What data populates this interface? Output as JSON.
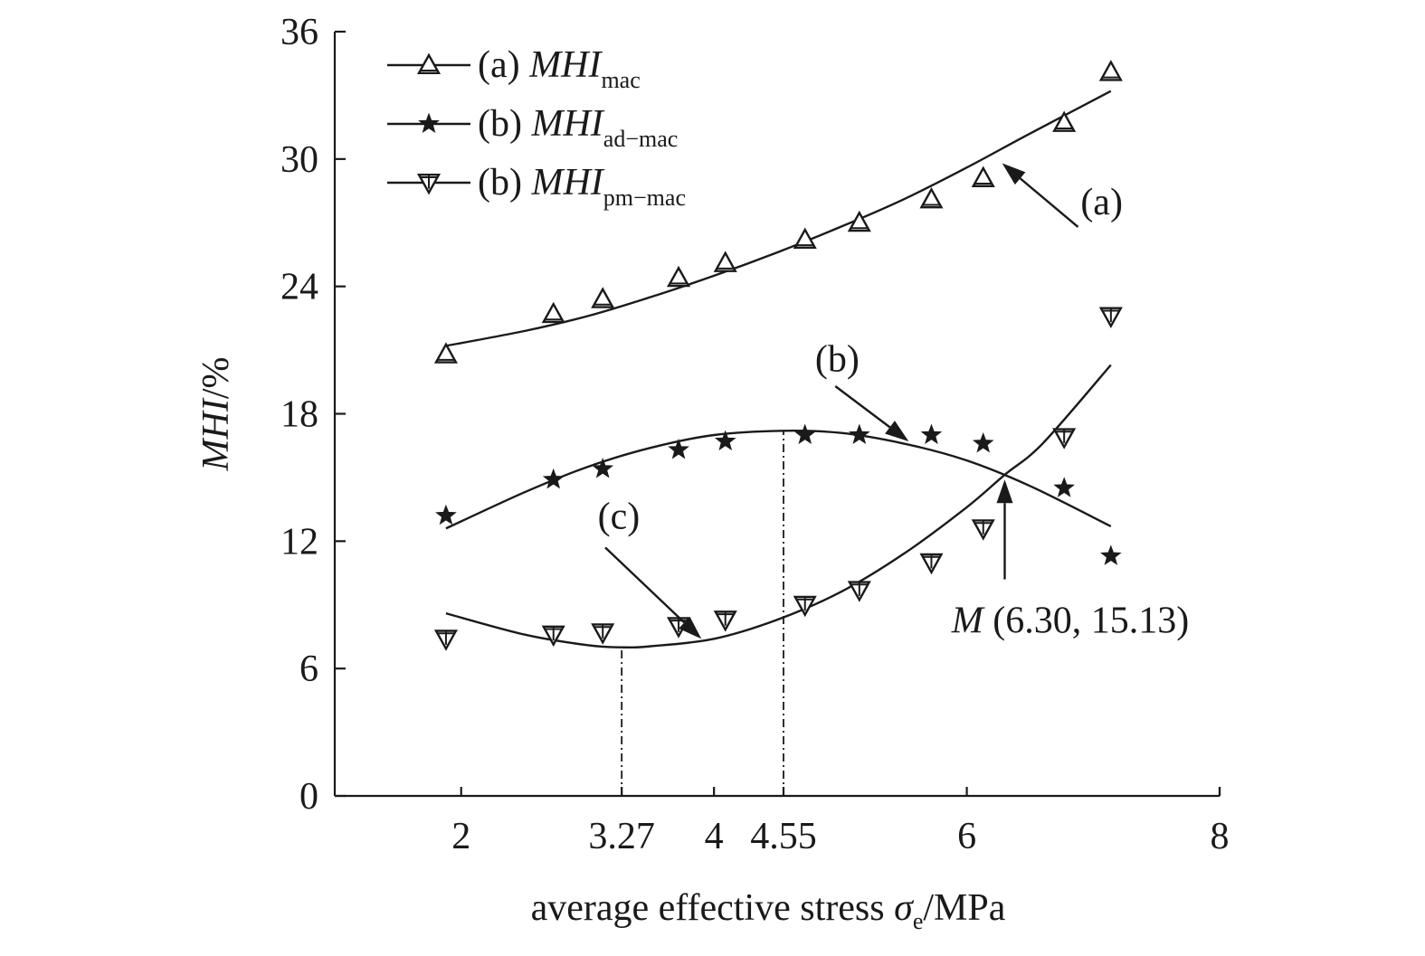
{
  "chart_data": {
    "type": "scatter",
    "xlabel": "average effective stress σe/MPa",
    "xlabel_main": "average effective stress ",
    "xlabel_symbol": "σ",
    "xlabel_sub": "e",
    "xlabel_unit": "/MPa",
    "ylabel": "MHI/%",
    "ylabel_var": "MHI",
    "ylabel_unit": "/%",
    "xlim": [
      1,
      8
    ],
    "ylim": [
      0,
      36
    ],
    "x_ticks": [
      2,
      3.27,
      4,
      4.55,
      6,
      8
    ],
    "x_tick_labels": [
      "2",
      "3.27",
      "4",
      "4.55",
      "6",
      "8"
    ],
    "y_ticks": [
      0,
      6,
      12,
      18,
      24,
      30,
      36
    ],
    "y_tick_labels": [
      "0",
      "6",
      "12",
      "18",
      "24",
      "30",
      "36"
    ],
    "legend_position": "top-left",
    "grid": false,
    "series": [
      {
        "name": "(a) MHImac",
        "legend_prefix": "(a) ",
        "legend_var": "MHI",
        "legend_sub": "mac",
        "marker": "triangle-up-open",
        "points": [
          {
            "x": 1.88,
            "y": 20.8
          },
          {
            "x": 2.73,
            "y": 22.7
          },
          {
            "x": 3.12,
            "y": 23.4
          },
          {
            "x": 3.72,
            "y": 24.4
          },
          {
            "x": 4.09,
            "y": 25.1
          },
          {
            "x": 4.72,
            "y": 26.2
          },
          {
            "x": 5.15,
            "y": 27.0
          },
          {
            "x": 5.72,
            "y": 28.1
          },
          {
            "x": 6.13,
            "y": 29.1
          },
          {
            "x": 6.77,
            "y": 31.7
          },
          {
            "x": 7.14,
            "y": 34.1
          }
        ],
        "fit": {
          "x": [
            1.88,
            2.5,
            3.0,
            3.5,
            4.0,
            4.5,
            5.0,
            5.5,
            6.0,
            6.5,
            7.14
          ],
          "y": [
            21.2,
            21.9,
            22.6,
            23.5,
            24.5,
            25.6,
            26.8,
            28.1,
            29.6,
            31.2,
            33.2
          ]
        }
      },
      {
        "name": "(b) MHIad−mac",
        "legend_prefix": "(b) ",
        "legend_var": "MHI",
        "legend_sub": "ad−mac",
        "marker": "star-filled",
        "points": [
          {
            "x": 1.88,
            "y": 13.2
          },
          {
            "x": 2.73,
            "y": 14.9
          },
          {
            "x": 3.12,
            "y": 15.4
          },
          {
            "x": 3.72,
            "y": 16.3
          },
          {
            "x": 4.09,
            "y": 16.7
          },
          {
            "x": 4.72,
            "y": 17.0
          },
          {
            "x": 5.15,
            "y": 17.0
          },
          {
            "x": 5.72,
            "y": 17.0
          },
          {
            "x": 6.13,
            "y": 16.6
          },
          {
            "x": 6.77,
            "y": 14.5
          },
          {
            "x": 7.14,
            "y": 11.3
          }
        ],
        "fit": {
          "x": [
            1.88,
            2.5,
            3.0,
            3.5,
            4.0,
            4.55,
            5.0,
            5.5,
            6.0,
            6.5,
            7.14
          ],
          "y": [
            12.6,
            14.3,
            15.5,
            16.4,
            17.0,
            17.2,
            17.1,
            16.6,
            15.8,
            14.6,
            12.7
          ]
        }
      },
      {
        "name": "(b) MHIpm−mac",
        "legend_prefix": "(b) ",
        "legend_var": "MHI",
        "legend_sub": "pm−mac",
        "marker": "triangle-down-open-cross",
        "points": [
          {
            "x": 1.88,
            "y": 7.4
          },
          {
            "x": 2.73,
            "y": 7.6
          },
          {
            "x": 3.12,
            "y": 7.7
          },
          {
            "x": 3.72,
            "y": 8.0
          },
          {
            "x": 4.09,
            "y": 8.3
          },
          {
            "x": 4.72,
            "y": 9.0
          },
          {
            "x": 5.15,
            "y": 9.7
          },
          {
            "x": 5.72,
            "y": 11.0
          },
          {
            "x": 6.13,
            "y": 12.6
          },
          {
            "x": 6.77,
            "y": 16.9
          },
          {
            "x": 7.14,
            "y": 22.6
          }
        ],
        "fit": {
          "x": [
            1.88,
            2.5,
            3.0,
            3.27,
            3.5,
            4.0,
            4.5,
            5.0,
            5.5,
            6.0,
            6.3,
            6.6,
            7.14
          ],
          "y": [
            8.6,
            7.6,
            7.1,
            7.0,
            7.05,
            7.4,
            8.3,
            9.6,
            11.4,
            13.6,
            15.13,
            16.6,
            20.3
          ]
        }
      }
    ],
    "reference_lines": [
      {
        "x": 3.27,
        "y_top": 7.0
      },
      {
        "x": 4.55,
        "y_top": 17.2
      }
    ],
    "annotations": [
      {
        "label": "(a)",
        "text_at": [
          6.9,
          27.4
        ],
        "arrow_from": [
          6.88,
          26.8
        ],
        "arrow_to": [
          6.28,
          29.8
        ]
      },
      {
        "label": "(b)",
        "text_at": [
          4.8,
          20.0
        ],
        "arrow_from": [
          4.96,
          19.3
        ],
        "arrow_to": [
          5.54,
          16.7
        ]
      },
      {
        "label": "(c)",
        "text_at": [
          3.08,
          12.6
        ],
        "arrow_from": [
          3.14,
          11.7
        ],
        "arrow_to": [
          3.9,
          7.4
        ]
      },
      {
        "label_var": "M",
        "label_rest": " (6.30, 15.13)",
        "text_at": [
          5.88,
          7.7
        ],
        "arrow_from": [
          6.3,
          10.2
        ],
        "arrow_to": [
          6.3,
          14.9
        ]
      }
    ]
  }
}
